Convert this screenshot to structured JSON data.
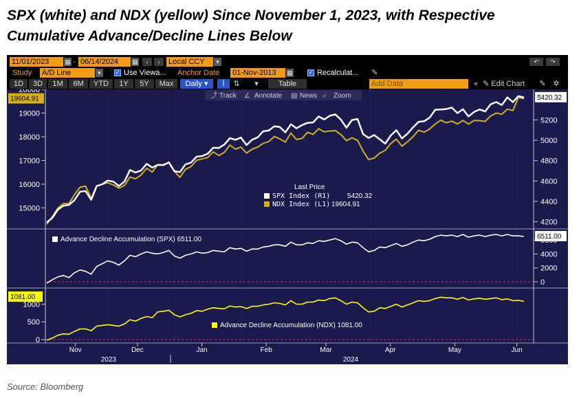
{
  "headline": {
    "line1": "SPX (white) and NDX (yellow) Since November 1, 2023, with Respective",
    "line2": "Cumulative Advance/Decline Lines Below"
  },
  "toolbar": {
    "start_date": "11/01/2023",
    "end_date": "06/14/2024",
    "currency": "Local CCY",
    "study_label": "Study",
    "study_value": "A/D Line",
    "use_view_label": "Use Viewa...",
    "anchor_date_label": "Anchor Date",
    "anchor_date_value": "01-Nov-2013",
    "recalculate_label": "Recalculat...",
    "periods": [
      "1D",
      "3D",
      "1M",
      "6M",
      "YTD",
      "1Y",
      "5Y",
      "Max"
    ],
    "frequency": "Daily",
    "table_label": "Table",
    "add_data_placeholder": "Add Data",
    "edit_chart_label": "Edit Chart",
    "track_label": "Track",
    "annotate_label": "Annotate",
    "news_label": "News",
    "zoom_label": "Zoom",
    "colors": {
      "field_bg": "#f39c12",
      "active_btn": "#2a55c8",
      "plot_bg": "#1a1a4d"
    },
    "icons": [
      "calendar-icon",
      "undo-icon",
      "redo-icon",
      "pencil-icon",
      "settings-icon",
      "line-chart-icon",
      "collapse-icon"
    ]
  },
  "chart_data": [
    {
      "type": "line",
      "panel": "price",
      "x_labels": [
        "Nov",
        "Dec",
        "Jan",
        "Feb",
        "Mar",
        "Apr",
        "May",
        "Jun"
      ],
      "year_labels": [
        "2023",
        "2024"
      ],
      "left_axis": {
        "ylim": [
          14200,
          20000
        ],
        "ticks": [
          15000,
          16000,
          17000,
          18000,
          19000,
          20000
        ]
      },
      "right_axis": {
        "ylim": [
          4150,
          5500
        ],
        "ticks": [
          4200,
          4400,
          4600,
          4800,
          5000,
          5200
        ]
      },
      "legend_title": "Last Price",
      "series": [
        {
          "name": "SPX Index",
          "axis_tag": "(R1)",
          "color": "#ffffff",
          "last_value": "5420.32",
          "values": [
            4193,
            4238,
            4318,
            4358,
            4365,
            4412,
            4495,
            4502,
            4415,
            4550,
            4568,
            4604,
            4594,
            4551,
            4594,
            4708,
            4683,
            4704,
            4769,
            4732,
            4758,
            4756,
            4783,
            4697,
            4688,
            4763,
            4781,
            4839,
            4845,
            4868,
            4927,
            4924,
            4958,
            5021,
            5005,
            5026,
            4953,
            5005,
            5029,
            5088,
            5096,
            5137,
            5130,
            5078,
            5157,
            5117,
            5149,
            5171,
            5175,
            5234,
            5204,
            5241,
            5254,
            5204,
            5123,
            5199,
            5209,
            5061,
            5023,
            5051,
            5010,
            4967,
            5048,
            5100,
            5018,
            5064,
            5127,
            5181,
            5187,
            5222,
            5300,
            5303,
            5307,
            5321,
            5267,
            5305,
            5235,
            5278,
            5303,
            5283,
            5354,
            5375,
            5346,
            5421,
            5375,
            5433,
            5420
          ]
        },
        {
          "name": "NDX Index",
          "axis_tag": "(L1)",
          "color": "#d4b11a",
          "last_value": "19604.91",
          "values": [
            14309,
            14630,
            14988,
            15185,
            15180,
            15550,
            15870,
            15920,
            15400,
            15930,
            16002,
            16058,
            15970,
            15834,
            15941,
            16300,
            16226,
            16389,
            16673,
            16512,
            16820,
            16825,
            16906,
            16543,
            16290,
            16623,
            16744,
            17010,
            17065,
            17124,
            17364,
            17210,
            17340,
            17650,
            17478,
            17560,
            17312,
            17476,
            17563,
            17720,
            17800,
            18010,
            17910,
            17780,
            18158,
            17885,
            17930,
            18190,
            18100,
            18339,
            18211,
            18244,
            18260,
            18096,
            17837,
            17956,
            17850,
            17400,
            17037,
            17100,
            17306,
            17430,
            17718,
            17900,
            17605,
            17783,
            18001,
            18278,
            18197,
            18330,
            18538,
            18700,
            18590,
            18660,
            18540,
            18690,
            18536,
            18690,
            18680,
            18650,
            18880,
            19000,
            18950,
            19163,
            19110,
            19661,
            19605
          ]
        }
      ]
    },
    {
      "type": "line",
      "panel": "adl_spx",
      "ylim": [
        -600,
        7200
      ],
      "ticks": [
        0,
        2000,
        4000,
        6000
      ],
      "zero_line": 0,
      "series": [
        {
          "name": "Advance Decline Accumulation (SPX)",
          "color": "#ffffff",
          "last_value": "6511.00",
          "values": [
            -200,
            300,
            700,
            900,
            600,
            1300,
            1700,
            1500,
            1100,
            2200,
            2600,
            3000,
            2800,
            2400,
            3000,
            3800,
            3600,
            4000,
            4300,
            4100,
            4000,
            4200,
            4500,
            3700,
            3400,
            3800,
            4000,
            4300,
            4100,
            4200,
            4500,
            4400,
            4300,
            4900,
            4700,
            4800,
            4400,
            4700,
            4700,
            5000,
            5100,
            5300,
            5300,
            5100,
            5700,
            5300,
            5300,
            5600,
            5500,
            5900,
            5800,
            6000,
            6200,
            5900,
            5400,
            5700,
            5600,
            4900,
            4300,
            4500,
            5000,
            4900,
            5200,
            5500,
            5100,
            5300,
            5700,
            6000,
            5900,
            6100,
            6500,
            6700,
            6600,
            6700,
            6500,
            6800,
            6400,
            6600,
            6700,
            6500,
            6700,
            6800,
            6600,
            6800,
            6600,
            6600,
            6511
          ]
        }
      ]
    },
    {
      "type": "line",
      "panel": "adl_ndx",
      "ylim": [
        -80,
        1400
      ],
      "ticks": [
        0,
        500,
        1000
      ],
      "zero_line": 0,
      "series": [
        {
          "name": "Advance Decline Accumulation (NDX)",
          "color": "#ffff00",
          "last_value": "1081.00",
          "values": [
            -20,
            40,
            120,
            160,
            150,
            230,
            300,
            300,
            250,
            380,
            400,
            420,
            400,
            380,
            440,
            560,
            520,
            600,
            650,
            620,
            780,
            800,
            830,
            700,
            640,
            700,
            740,
            820,
            800,
            860,
            900,
            880,
            870,
            950,
            920,
            930,
            880,
            940,
            940,
            980,
            1000,
            1040,
            1020,
            980,
            1100,
            1000,
            1000,
            1060,
            1060,
            1120,
            1100,
            1160,
            1180,
            1100,
            1000,
            1060,
            1040,
            900,
            780,
            800,
            900,
            880,
            940,
            1000,
            920,
            980,
            1040,
            1100,
            1080,
            1100,
            1160,
            1200,
            1180,
            1180,
            1140,
            1190,
            1120,
            1150,
            1170,
            1140,
            1160,
            1180,
            1130,
            1150,
            1100,
            1110,
            1081
          ]
        }
      ]
    }
  ],
  "source": "Source: Bloomberg"
}
